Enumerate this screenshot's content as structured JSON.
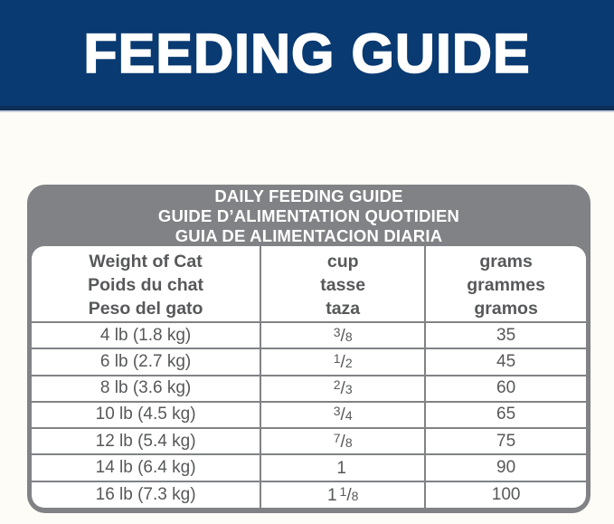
{
  "banner": {
    "title": "FEEDING GUIDE"
  },
  "colors": {
    "banner_bg": "#093a71",
    "banner_bottom_edge": "#0e2e57",
    "separator_line": "#c9d0da",
    "table_gray": "#808285",
    "table_text_gray": "#57585a",
    "header_text": "#ffffff",
    "body_bg": "#ffffff"
  },
  "guide": {
    "title_lines": [
      "DAILY FEEDING GUIDE",
      "GUIDE D’ALIMENTATION QUOTIDIEN",
      "GUIA DE ALIMENTACION DIARIA"
    ],
    "columns": {
      "weight": [
        "Weight of Cat",
        "Poids du chat",
        "Peso del gato"
      ],
      "cup": [
        "cup",
        "tasse",
        "taza"
      ],
      "grams": [
        "grams",
        "grammes",
        "gramos"
      ]
    },
    "rows": [
      {
        "weight": "4 lb (1.8 kg)",
        "cup_whole": "",
        "cup_num": "3",
        "cup_slash": "/",
        "cup_den": "8",
        "grams": "35"
      },
      {
        "weight": "6 lb (2.7 kg)",
        "cup_whole": "",
        "cup_num": "1",
        "cup_slash": "/",
        "cup_den": "2",
        "grams": "45"
      },
      {
        "weight": "8 lb (3.6 kg)",
        "cup_whole": "",
        "cup_num": "2",
        "cup_slash": "/",
        "cup_den": "3",
        "grams": "60"
      },
      {
        "weight": "10 lb (4.5 kg)",
        "cup_whole": "",
        "cup_num": "3",
        "cup_slash": "/",
        "cup_den": "4",
        "grams": "65"
      },
      {
        "weight": "12 lb (5.4 kg)",
        "cup_whole": "",
        "cup_num": "7",
        "cup_slash": "/",
        "cup_den": "8",
        "grams": "75"
      },
      {
        "weight": "14 lb (6.4 kg)",
        "cup_whole": "1",
        "cup_num": "",
        "cup_slash": "",
        "cup_den": "",
        "grams": "90"
      },
      {
        "weight": "16 lb (7.3 kg)",
        "cup_whole": "1",
        "cup_num": "1",
        "cup_slash": "/",
        "cup_den": "8",
        "grams": "100"
      }
    ]
  },
  "chart_data": {
    "type": "table",
    "title": "DAILY FEEDING GUIDE",
    "columns": [
      "Weight of Cat",
      "cup",
      "grams"
    ],
    "rows": [
      [
        "4 lb (1.8 kg)",
        "3/8",
        35
      ],
      [
        "6 lb (2.7 kg)",
        "1/2",
        45
      ],
      [
        "8 lb (3.6 kg)",
        "2/3",
        60
      ],
      [
        "10 lb (4.5 kg)",
        "3/4",
        65
      ],
      [
        "12 lb (5.4 kg)",
        "7/8",
        75
      ],
      [
        "14 lb (6.4 kg)",
        "1",
        90
      ],
      [
        "16 lb (7.3 kg)",
        "1 1/8",
        100
      ]
    ]
  }
}
